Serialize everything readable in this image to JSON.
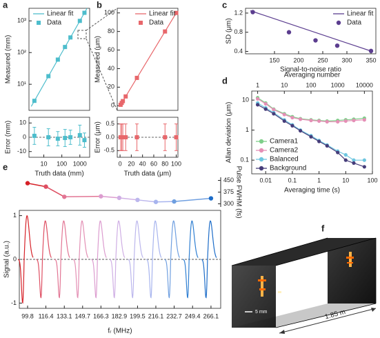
{
  "chart_data": [
    {
      "type": "scatter",
      "label": "a",
      "ylabel": "Measured (mm)",
      "xlog": true,
      "ylog": true,
      "xlim": [
        1.5,
        3500
      ],
      "ylim": [
        1.5,
        2500
      ],
      "yticks": [
        {
          "value": 10,
          "label": "10¹"
        },
        {
          "value": 100,
          "label": "10²"
        },
        {
          "value": 1000,
          "label": "10³"
        }
      ],
      "legend": "upper left",
      "series": [
        {
          "name": "Linear fit",
          "mode": "line",
          "color": "#4dbdcc",
          "x": [
            2,
            2500
          ],
          "values": [
            2,
            2500
          ]
        },
        {
          "name": "Data",
          "mode": "markers",
          "marker": "square",
          "color": "#4dbdcc",
          "x": [
            3,
            18,
            60,
            150,
            300,
            1000,
            1800
          ],
          "values": [
            3,
            18,
            60,
            150,
            300,
            1000,
            1800
          ]
        }
      ]
    },
    {
      "type": "errorbar",
      "ylabel": "Error (mm)",
      "xlabel": "Truth data (mm)",
      "xlog": true,
      "xlim": [
        1.5,
        3500
      ],
      "xticks": [
        10,
        100,
        1000
      ],
      "ylim": [
        -14,
        14
      ],
      "yticks": [
        -10,
        0,
        10
      ],
      "color": "#4dbdcc",
      "marker": "square",
      "x": [
        3,
        18,
        60,
        150,
        300,
        1000,
        1800
      ],
      "values": [
        1,
        0,
        -1,
        -0.5,
        0,
        1.5,
        -2
      ],
      "errors": [
        6,
        6,
        5,
        6,
        5,
        7,
        5
      ]
    },
    {
      "type": "scatter",
      "label": "b",
      "ylabel": "Measured (μm)",
      "xlim": [
        -5,
        103
      ],
      "ylim": [
        -5,
        105
      ],
      "yticks": [
        0,
        20,
        40,
        60,
        80,
        100
      ],
      "legend": "upper right",
      "series": [
        {
          "name": "Linear fit",
          "mode": "line",
          "color": "#e8676b",
          "x": [
            0,
            100
          ],
          "values": [
            0,
            100
          ]
        },
        {
          "name": "Data",
          "mode": "markers",
          "marker": "square",
          "color": "#e8676b",
          "x": [
            1,
            3,
            5,
            10,
            30,
            80,
            100
          ],
          "values": [
            1,
            3,
            5,
            10,
            30,
            80,
            100
          ]
        }
      ]
    },
    {
      "type": "errorbar",
      "ylabel": "Error (μm)",
      "xlabel": "Truth data (μm)",
      "xlim": [
        -5,
        103
      ],
      "xticks": [
        0,
        20,
        40,
        60,
        80,
        100
      ],
      "ylim": [
        -0.75,
        0.75
      ],
      "yticks": [
        {
          "value": -0.5,
          "label": "-0.5"
        },
        {
          "value": 0,
          "label": "0.0"
        },
        {
          "value": 0.5,
          "label": "0.5"
        }
      ],
      "color": "#e8676b",
      "marker": "square",
      "x": [
        1,
        3,
        5,
        10,
        30,
        80,
        100
      ],
      "values": [
        0,
        0,
        0,
        0,
        0,
        0,
        0
      ],
      "errors": [
        0.5,
        0.5,
        0.5,
        0.5,
        0.5,
        0.5,
        0.5
      ]
    },
    {
      "type": "scatter",
      "label": "c",
      "ylabel": "SD (μm)",
      "xlabel": "Signal-to-noise ratio",
      "xlim": [
        90,
        360
      ],
      "xticks": [
        150,
        200,
        250,
        300,
        350
      ],
      "ylim": [
        0.35,
        1.3
      ],
      "yticks": [
        0.4,
        0.8,
        1.2
      ],
      "legend": "upper right",
      "series": [
        {
          "name": "Linear fit",
          "mode": "line",
          "color": "#5b3d8f",
          "x": [
            100,
            352
          ],
          "values": [
            1.25,
            0.4
          ]
        },
        {
          "name": "Data",
          "mode": "markers",
          "marker": "circle",
          "color": "#5b3d8f",
          "x": [
            105,
            180,
            235,
            280,
            350
          ],
          "values": [
            1.22,
            0.8,
            0.63,
            0.52,
            0.41
          ]
        }
      ]
    },
    {
      "type": "line",
      "label": "d",
      "ylabel": "Allan deviation (μm)",
      "xlabel": "Averaging time (s)",
      "x2label": "Averaging number",
      "xlog": true,
      "ylog": true,
      "xlim": [
        0.003,
        100
      ],
      "xticks": [
        0.01,
        0.1,
        1,
        10,
        100
      ],
      "ylim": [
        0.035,
        20
      ],
      "yticks": [
        0.1,
        1,
        10
      ],
      "x2lim": [
        0.6,
        20000
      ],
      "x2ticks": [
        1,
        10,
        100,
        1000,
        10000
      ],
      "legend": "lower left",
      "x": [
        0.005,
        0.01,
        0.02,
        0.05,
        0.1,
        0.2,
        0.5,
        1,
        2,
        5,
        10,
        20,
        50
      ],
      "series": [
        {
          "name": "Camera1",
          "color": "#7fcf8a",
          "values": [
            12,
            8,
            5,
            3.5,
            2.8,
            2.4,
            2.2,
            2.1,
            2.0,
            2.1,
            2.2,
            2.3,
            2.5
          ]
        },
        {
          "name": "Camera2",
          "color": "#e58fb6",
          "values": [
            11,
            7.5,
            4.8,
            3.3,
            2.6,
            2.3,
            2.1,
            2.0,
            1.9,
            1.9,
            2.0,
            2.1,
            2.2
          ]
        },
        {
          "name": "Balanced",
          "color": "#6ec6e0",
          "values": [
            8,
            5.5,
            3.8,
            2.2,
            1.5,
            1.0,
            0.65,
            0.45,
            0.32,
            0.2,
            0.15,
            0.1,
            0.1
          ]
        },
        {
          "name": "Background",
          "color": "#463d7a",
          "values": [
            7,
            5,
            3.5,
            2,
            1.4,
            0.95,
            0.6,
            0.42,
            0.3,
            0.18,
            0.1,
            0.08,
            0.06
          ]
        }
      ]
    },
    {
      "type": "line",
      "label": "e",
      "ylabel": "Pulse FWHM (fs)",
      "yaxis": "right",
      "xlim": [
        92.3,
        274.9
      ],
      "ylim": [
        280,
        470
      ],
      "yticks": [
        300,
        375,
        450
      ],
      "x": [
        99.8,
        116.4,
        133.1,
        166.3,
        182.9,
        199.5,
        216.1,
        232.7,
        266.1
      ],
      "values": [
        432,
        410,
        345,
        348,
        338,
        325,
        312,
        315,
        335
      ],
      "colors": [
        "#d62027",
        "#de4e62",
        "#e27594",
        "#dc9ccf",
        "#cfaee4",
        "#bcb7ed",
        "#a7b4ee",
        "#6f9fe0",
        "#1c6cc8"
      ]
    },
    {
      "type": "waveform",
      "ylabel": "Signal (a.u.)",
      "xlabel": "fᵣ (MHz)",
      "xlim": [
        92.3,
        274.9
      ],
      "ylim": [
        -1.12,
        1.12
      ],
      "yticks": [
        -1,
        0,
        1
      ],
      "x": [
        99.8,
        116.4,
        133.1,
        149.7,
        166.3,
        182.9,
        199.5,
        216.1,
        232.7,
        249.4,
        266.1
      ],
      "colors": [
        "#d62027",
        "#de4e62",
        "#e27594",
        "#e38fb4",
        "#dc9ccf",
        "#cfaee4",
        "#bcb7ed",
        "#a7b4ee",
        "#6f9fe0",
        "#2f7fd2",
        "#1c6cc8"
      ]
    }
  ],
  "diagram": {
    "label": "f",
    "scale_bar": "5 mm",
    "distance": "1.85 m"
  }
}
